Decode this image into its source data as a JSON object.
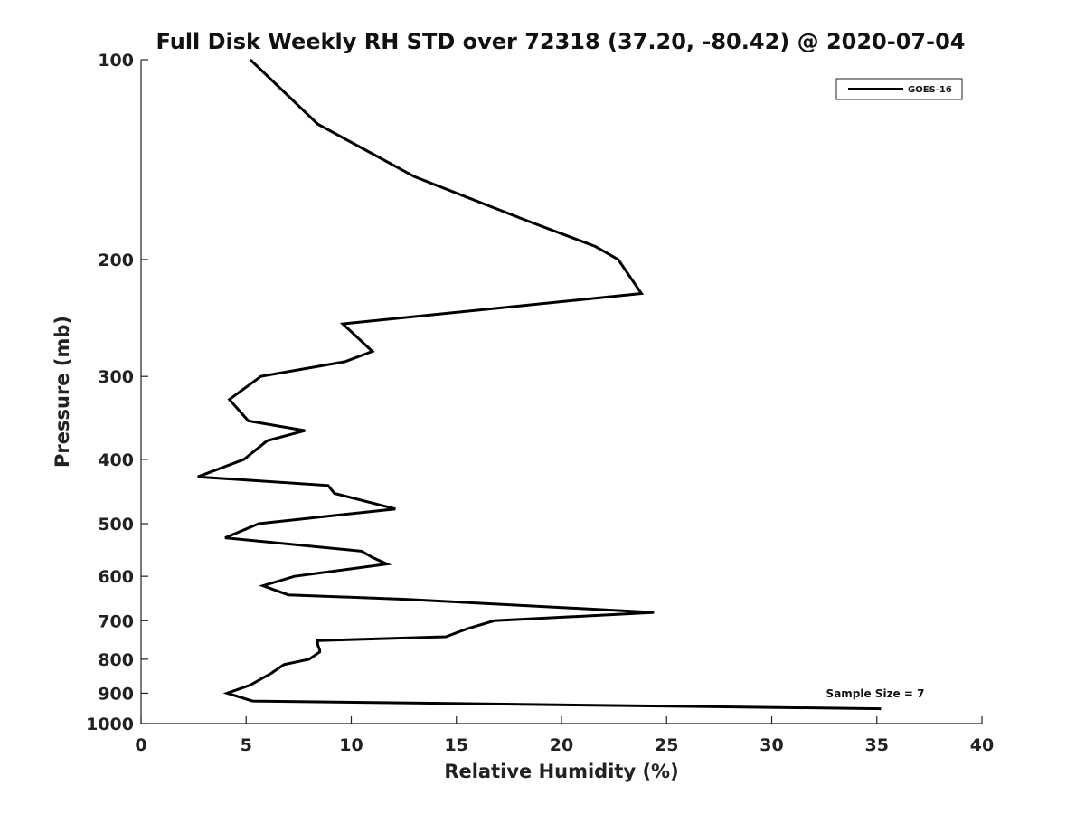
{
  "chart_data": {
    "type": "line",
    "title": "Full Disk Weekly RH STD over 72318 (37.20, -80.42) @ 2020-07-04",
    "xlabel": "Relative Humidity (%)",
    "ylabel": "Pressure (mb)",
    "xlim": [
      0,
      40
    ],
    "ylim": [
      100,
      1000
    ],
    "yscale": "log",
    "y_reversed": true,
    "xticks": [
      0,
      5,
      10,
      15,
      20,
      25,
      30,
      35,
      40
    ],
    "yticks": [
      100,
      200,
      300,
      400,
      500,
      600,
      700,
      800,
      900,
      1000
    ],
    "grid": false,
    "legend": {
      "position": "top-right",
      "entries": [
        "GOES-16"
      ]
    },
    "annotation": "Sample Size = 7",
    "series": [
      {
        "name": "GOES-16",
        "color": "#000000",
        "points": [
          [
            5.2,
            100
          ],
          [
            8.4,
            125
          ],
          [
            13.0,
            150
          ],
          [
            18.4,
            175
          ],
          [
            21.6,
            191
          ],
          [
            22.7,
            200
          ],
          [
            23.8,
            225
          ],
          [
            9.6,
            250
          ],
          [
            11.0,
            275
          ],
          [
            9.7,
            285
          ],
          [
            5.7,
            300
          ],
          [
            4.2,
            325
          ],
          [
            5.1,
            350
          ],
          [
            7.8,
            362
          ],
          [
            6.0,
            375
          ],
          [
            4.9,
            400
          ],
          [
            2.7,
            425
          ],
          [
            8.9,
            438
          ],
          [
            9.2,
            450
          ],
          [
            12.1,
            475
          ],
          [
            5.6,
            500
          ],
          [
            4.0,
            525
          ],
          [
            10.5,
            550
          ],
          [
            11.0,
            562
          ],
          [
            11.7,
            575
          ],
          [
            7.3,
            600
          ],
          [
            5.8,
            620
          ],
          [
            7.0,
            640
          ],
          [
            12.7,
            650
          ],
          [
            24.4,
            680
          ],
          [
            16.8,
            700
          ],
          [
            15.5,
            720
          ],
          [
            14.5,
            740
          ],
          [
            8.4,
            750
          ],
          [
            8.4,
            760
          ],
          [
            8.5,
            775
          ],
          [
            8.5,
            780
          ],
          [
            8.0,
            800
          ],
          [
            6.8,
            815
          ],
          [
            6.2,
            840
          ],
          [
            5.9,
            850
          ],
          [
            5.2,
            875
          ],
          [
            4.1,
            900
          ],
          [
            5.3,
            925
          ],
          [
            35.2,
            950
          ]
        ]
      }
    ]
  }
}
